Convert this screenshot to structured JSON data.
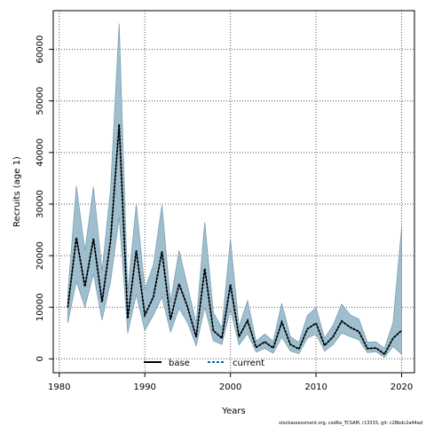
{
  "chart_data": {
    "type": "line",
    "xlabel": "Years",
    "ylabel": "Recruits (age 1)",
    "xlim": [
      1979.3,
      2021.5
    ],
    "ylim": [
      -2700,
      67500
    ],
    "xticks": [
      1980,
      1990,
      2000,
      2010,
      2020
    ],
    "yticks": [
      0,
      10000,
      20000,
      30000,
      40000,
      50000,
      60000
    ],
    "grid": true,
    "legend_position": "bottom-center",
    "x": [
      1981,
      1982,
      1983,
      1984,
      1985,
      1986,
      1987,
      1988,
      1989,
      1990,
      1991,
      1992,
      1993,
      1994,
      1995,
      1996,
      1997,
      1998,
      1999,
      2000,
      2001,
      2002,
      2003,
      2004,
      2005,
      2006,
      2007,
      2008,
      2009,
      2010,
      2011,
      2012,
      2013,
      2014,
      2015,
      2016,
      2017,
      2018,
      2019,
      2020
    ],
    "band_upper": [
      12500,
      33500,
      21000,
      33300,
      17000,
      33000,
      65000,
      13000,
      30000,
      13500,
      18200,
      29800,
      11000,
      21000,
      14000,
      6900,
      26500,
      9000,
      6000,
      23200,
      6200,
      11300,
      3400,
      4800,
      3400,
      10800,
      4300,
      3200,
      8400,
      9900,
      4000,
      6500,
      10600,
      8500,
      7700,
      3200,
      3300,
      2000,
      7000,
      25500
    ],
    "band_lower": [
      7000,
      15000,
      10000,
      16500,
      7500,
      15000,
      27500,
      5000,
      12500,
      5500,
      8500,
      12000,
      5200,
      9800,
      7000,
      2500,
      10000,
      3500,
      2800,
      9600,
      2700,
      4900,
      1300,
      2000,
      1100,
      4200,
      1500,
      1000,
      4000,
      4800,
      1500,
      2800,
      5000,
      4300,
      3700,
      1200,
      1400,
      300,
      2400,
      900
    ],
    "series": [
      {
        "name": "base",
        "values": [
          10000,
          23500,
          14000,
          23300,
          11000,
          23000,
          45500,
          7800,
          21000,
          8500,
          12000,
          20800,
          7600,
          14500,
          10000,
          4200,
          17500,
          5500,
          4000,
          14400,
          4300,
          7400,
          2200,
          3300,
          2100,
          7100,
          2800,
          1900,
          5800,
          6900,
          2600,
          4300,
          7300,
          6100,
          5300,
          2000,
          2100,
          900,
          4000,
          5500
        ]
      },
      {
        "name": "current",
        "values": [
          10000,
          23500,
          14000,
          23300,
          11000,
          23000,
          45500,
          7800,
          21000,
          8500,
          12000,
          20800,
          7600,
          14500,
          10000,
          4200,
          17500,
          5500,
          4000,
          14400,
          4300,
          7400,
          2200,
          3300,
          2100,
          7100,
          2800,
          1900,
          5800,
          6900,
          2600,
          4300,
          7300,
          6100,
          5300,
          2000,
          2100,
          900,
          4000,
          5500
        ]
      }
    ],
    "colors": {
      "band_fill": "#9fbfcf",
      "band_stroke": "#7a9fb3",
      "base": "#000000",
      "current": "#000000",
      "current_accent": "#0066aa",
      "grid": "#555555"
    },
    "footnote": "stockassessment.org, cod6a_TCSAM, r13333, git: c28bdc2a44ad"
  }
}
